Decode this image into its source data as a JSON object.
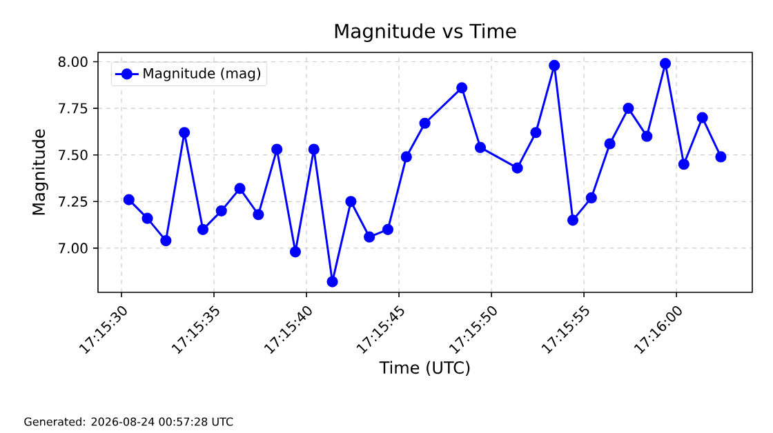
{
  "chart_data": {
    "type": "line",
    "title": "Magnitude vs Time",
    "xlabel": "Time (UTC)",
    "ylabel": "Magnitude",
    "annotations": [
      "Generated: 2026-08-24 00:57:28 UTC"
    ],
    "x": [
      17.2584444,
      17.2587222,
      17.259,
      17.2592778,
      17.2595556,
      17.2598333,
      17.2601111,
      17.2603889,
      17.2606667,
      17.2609444,
      17.2612222,
      17.2615,
      17.2617778,
      17.2620556,
      17.2623333,
      17.2626111,
      17.2628889,
      17.2634444,
      17.2637222,
      17.2642778,
      17.2645556,
      17.2648333,
      17.2651111,
      17.2653889,
      17.2656667,
      17.2659444,
      17.2662222,
      17.2665,
      17.2667778,
      17.2670556,
      17.2673333
    ],
    "series": [
      {
        "name": "Magnitude (mag)",
        "color": "#0000ff",
        "values": [
          7.26,
          7.16,
          7.04,
          7.62,
          7.1,
          7.2,
          7.32,
          7.18,
          7.53,
          6.98,
          7.53,
          6.82,
          7.25,
          7.06,
          7.1,
          7.49,
          7.67,
          7.86,
          7.54,
          7.43,
          7.62,
          7.98,
          7.15,
          7.27,
          7.56,
          7.75,
          7.6,
          7.99,
          7.45,
          7.7,
          7.49
        ]
      }
    ],
    "xlim": [
      17.2579806,
      17.2678056
    ],
    "ylim": [
      6.763,
      8.05
    ],
    "xticks": [
      {
        "value": 17.2583333,
        "label": "17:15:30"
      },
      {
        "value": 17.2597222,
        "label": "17:15:35"
      },
      {
        "value": 17.2611111,
        "label": "17:15:40"
      },
      {
        "value": 17.2625,
        "label": "17:15:45"
      },
      {
        "value": 17.2638889,
        "label": "17:15:50"
      },
      {
        "value": 17.2652778,
        "label": "17:15:55"
      },
      {
        "value": 17.2666667,
        "label": "17:16:00"
      }
    ],
    "yticks": [
      {
        "value": 7.0,
        "label": "7.00"
      },
      {
        "value": 7.25,
        "label": "7.25"
      },
      {
        "value": 7.5,
        "label": "7.50"
      },
      {
        "value": 7.75,
        "label": "7.75"
      },
      {
        "value": 8.0,
        "label": "8.00"
      }
    ],
    "grid": true,
    "legend": "top left",
    "marker": "circle",
    "line_style": "solid"
  }
}
